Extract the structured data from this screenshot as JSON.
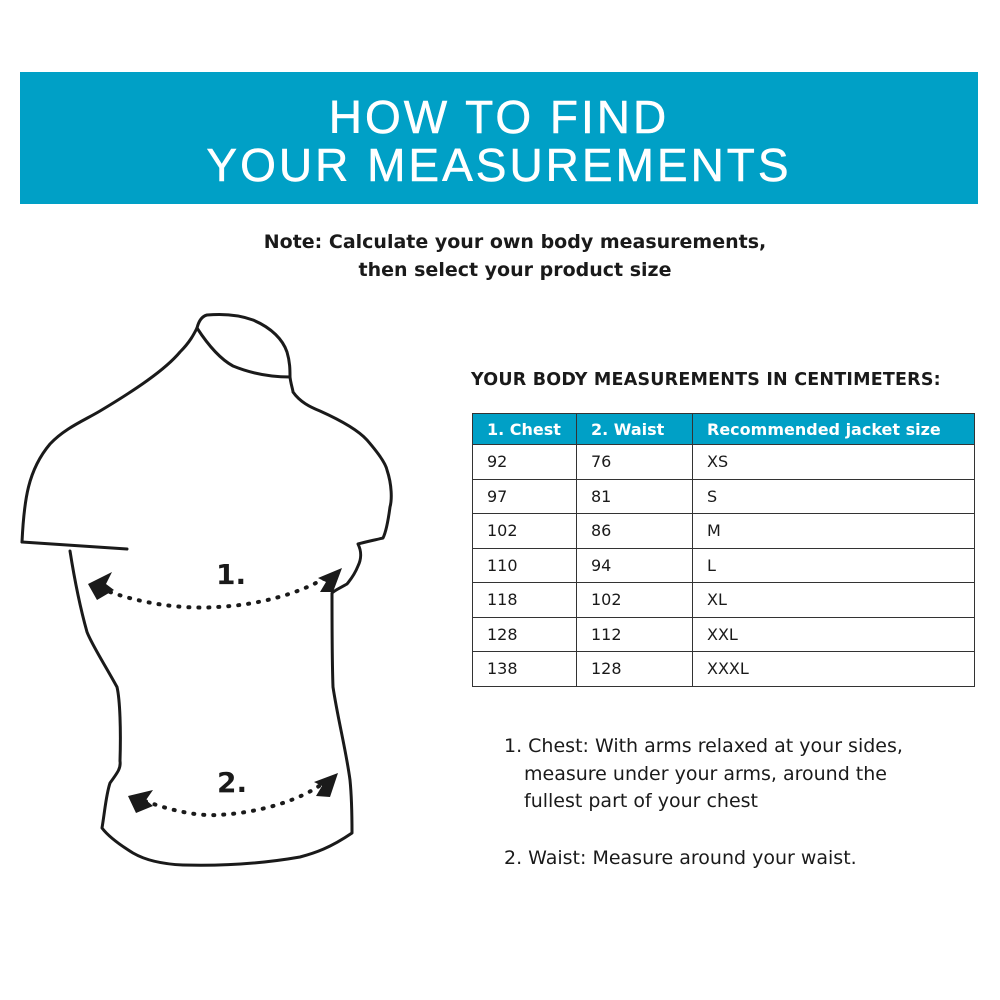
{
  "banner": {
    "line1": "HOW TO FIND",
    "line2": "YOUR MEASUREMENTS",
    "color": "#00a0c6"
  },
  "note": {
    "line1": "Note: Calculate your own body measurements,",
    "line2": "then select your product size"
  },
  "figure": {
    "label1": "1.",
    "label2": "2."
  },
  "table": {
    "title": "YOUR BODY MEASUREMENTS IN CENTIMETERS:",
    "headers": [
      "1. Chest",
      "2. Waist",
      "Recommended jacket size"
    ],
    "rows": [
      [
        "92",
        "76",
        "XS"
      ],
      [
        "97",
        "81",
        "S"
      ],
      [
        "102",
        "86",
        "M"
      ],
      [
        "110",
        "94",
        "L"
      ],
      [
        "118",
        "102",
        "XL"
      ],
      [
        "128",
        "112",
        "XXL"
      ],
      [
        "138",
        "128",
        "XXXL"
      ]
    ]
  },
  "instructions": {
    "chest": [
      "1. Chest: With arms relaxed at your sides,",
      "measure under your arms, around the",
      "fullest part of your chest"
    ],
    "waist": "2. Waist: Measure around your waist."
  }
}
